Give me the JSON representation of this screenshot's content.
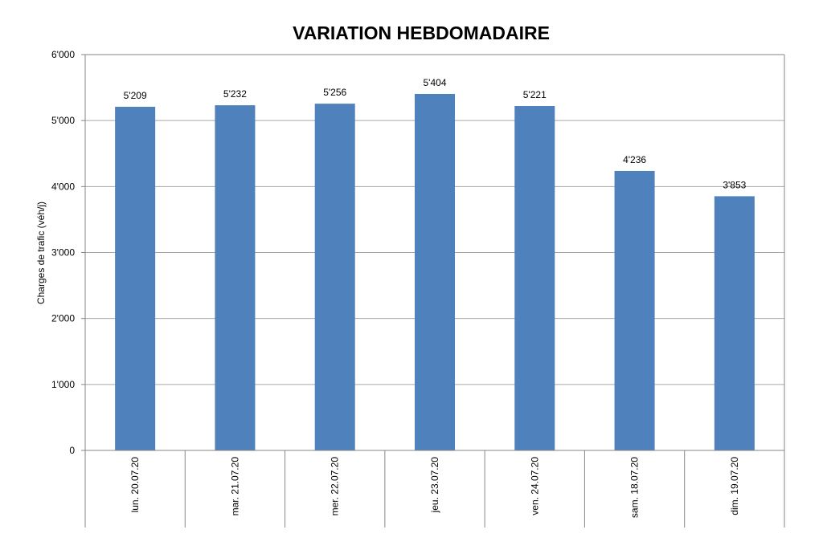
{
  "chart_data": {
    "type": "bar",
    "title": "VARIATION HEBDOMADAIRE",
    "xlabel": "",
    "ylabel": "Charges de trafic (véh/j)",
    "categories": [
      "lun. 20.07.20",
      "mar. 21.07.20",
      "mer. 22.07.20",
      "jeu. 23.07.20",
      "ven. 24.07.20",
      "sam. 18.07.20",
      "dim. 19.07.20"
    ],
    "values": [
      5209,
      5232,
      5256,
      5404,
      5221,
      4236,
      3853
    ],
    "data_labels": [
      "5'209",
      "5'232",
      "5'256",
      "5'404",
      "5'221",
      "4'236",
      "3'853"
    ],
    "ylim": [
      0,
      6000
    ],
    "yticks": [
      0,
      1000,
      2000,
      3000,
      4000,
      5000,
      6000
    ],
    "ytick_labels": [
      "0",
      "1'000",
      "2'000",
      "3'000",
      "4'000",
      "5'000",
      "6'000"
    ],
    "grid": true,
    "legend": "none",
    "colors": {
      "bar": "#4f81bd",
      "grid": "#a6a6a6",
      "axis": "#868686"
    }
  }
}
